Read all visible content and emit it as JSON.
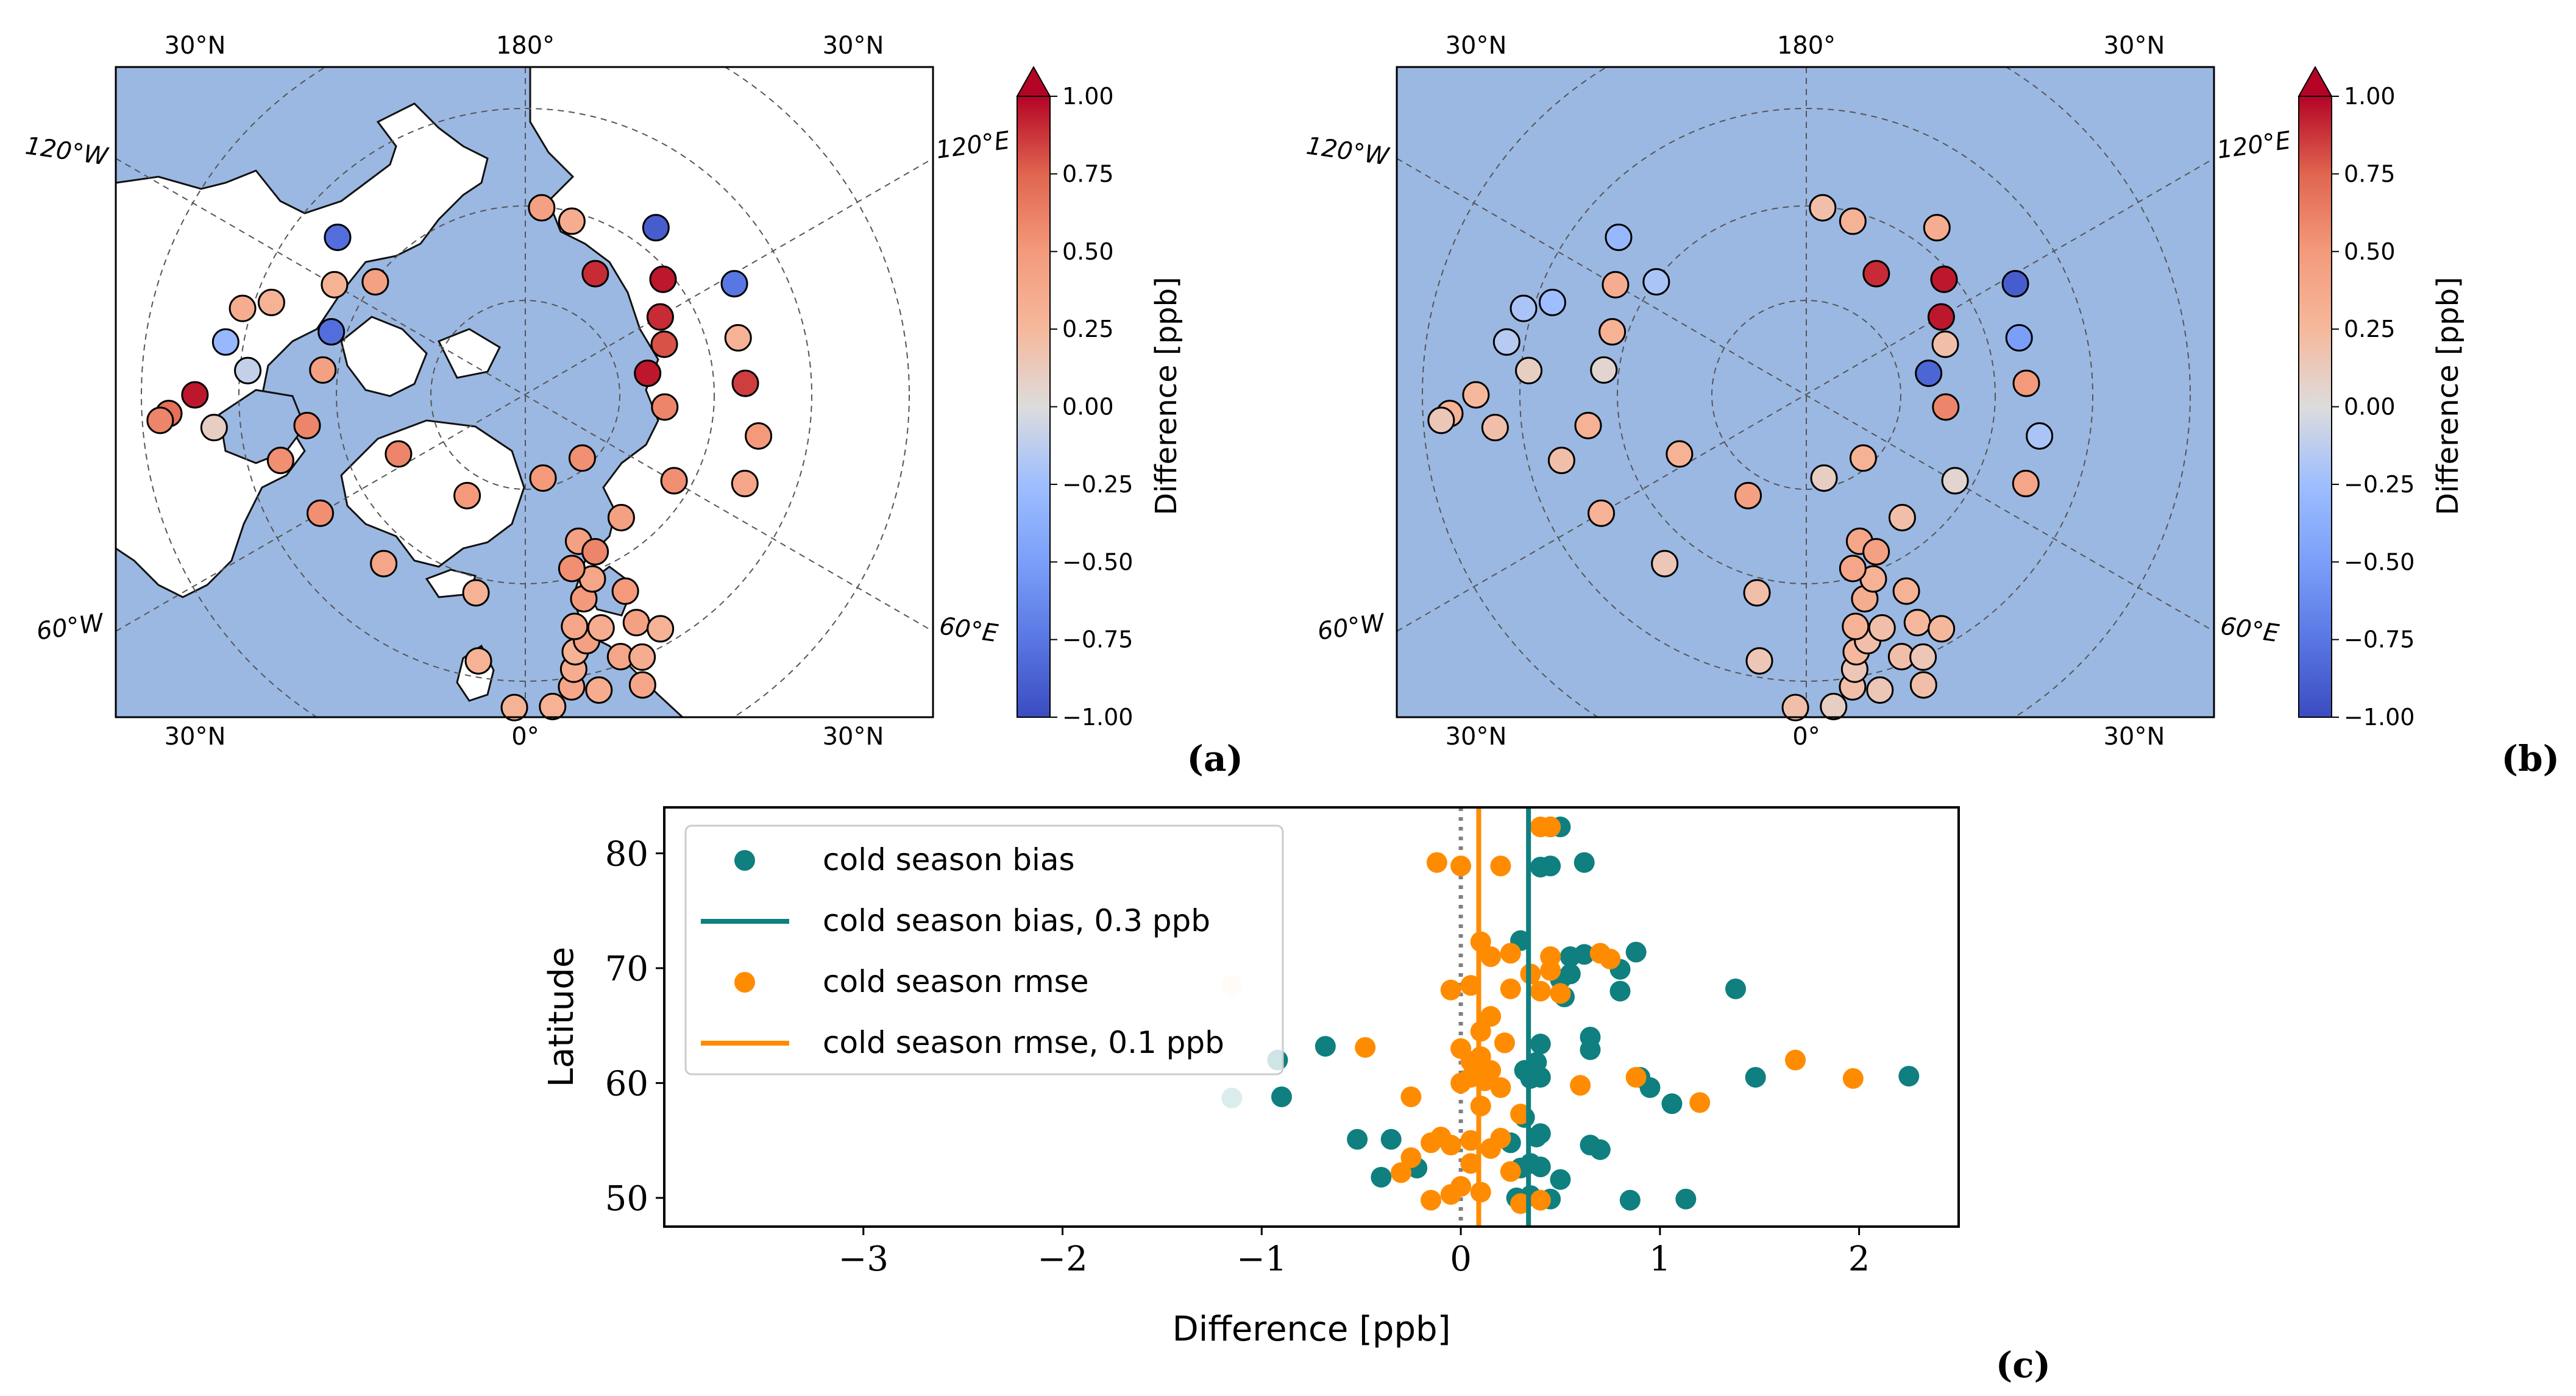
{
  "figure": {
    "panel_labels": [
      "(a)",
      "(b)",
      "(c)"
    ],
    "colors": {
      "ocean": "#9bb8e2",
      "land": "#ffffff",
      "coast": "#111111",
      "bias": "#0f7f7f",
      "rmse": "#ff8c00",
      "zero_line": "#808080"
    }
  },
  "maps": [
    {
      "panel": "(a)",
      "projection": "north-polar-stereographic",
      "lon_labels_top": [
        "30°N",
        "180°",
        "30°N"
      ],
      "lon_labels_bottom": [
        "30°N",
        "0°",
        "30°N"
      ],
      "side_labels": [
        "120°W",
        "120°E",
        "60°W",
        "60°E"
      ],
      "colorbar": {
        "label": "Difference [ppb]",
        "range": [
          -1.0,
          1.0
        ],
        "ticks": [
          "1.00",
          "0.75",
          "0.50",
          "0.25",
          "0.00",
          "−0.25",
          "−0.50",
          "−0.75",
          "−1.00"
        ],
        "cmap": "coolwarm",
        "extend": "max"
      },
      "stations": [
        {
          "lon": -127,
          "lat": 66,
          "v": 0.45
        },
        {
          "lon": -120,
          "lat": 62,
          "v": 0.3
        },
        {
          "lon": -110,
          "lat": 56,
          "v": 0.3
        },
        {
          "lon": -107,
          "lat": 53,
          "v": 0.35
        },
        {
          "lon": -100,
          "lat": 52,
          "v": -0.3
        },
        {
          "lon": -95,
          "lat": 55,
          "v": -0.1
        },
        {
          "lon": -108,
          "lat": 64,
          "v": -0.8
        },
        {
          "lon": -97,
          "lat": 64,
          "v": 0.45
        },
        {
          "lon": -82,
          "lat": 62,
          "v": 0.6
        },
        {
          "lon": -75,
          "lat": 58,
          "v": 0.55
        },
        {
          "lon": -60,
          "lat": 60,
          "v": 0.55
        },
        {
          "lon": -130,
          "lat": 59,
          "v": -0.8
        },
        {
          "lon": -84,
          "lat": 51,
          "v": 0.1
        },
        {
          "lon": -90,
          "lat": 49,
          "v": 0.95
        },
        {
          "lon": -87,
          "lat": 46,
          "v": 0.7
        },
        {
          "lon": -86,
          "lat": 45,
          "v": 0.6
        },
        {
          "lon": -65,
          "lat": 72,
          "v": 0.6
        },
        {
          "lon": -40,
          "lat": 62,
          "v": 0.4
        },
        {
          "lon": -14,
          "lat": 64,
          "v": 0.3
        },
        {
          "lon": -30,
          "lat": 75,
          "v": 0.5
        },
        {
          "lon": -10,
          "lat": 56,
          "v": 0.3
        },
        {
          "lon": -2,
          "lat": 51,
          "v": 0.3
        },
        {
          "lon": 12,
          "lat": 79,
          "v": 0.5
        },
        {
          "lon": 9,
          "lat": 53,
          "v": 0.4
        },
        {
          "lon": 10,
          "lat": 55,
          "v": 0.35
        },
        {
          "lon": 11,
          "lat": 57,
          "v": 0.3
        },
        {
          "lon": 14,
          "lat": 58,
          "v": 0.45
        },
        {
          "lon": 12,
          "lat": 60,
          "v": 0.4
        },
        {
          "lon": 18,
          "lat": 59,
          "v": 0.35
        },
        {
          "lon": 16,
          "lat": 63,
          "v": 0.5
        },
        {
          "lon": 20,
          "lat": 65,
          "v": 0.4
        },
        {
          "lon": 15,
          "lat": 67,
          "v": 0.55
        },
        {
          "lon": 20,
          "lat": 70,
          "v": 0.45
        },
        {
          "lon": 24,
          "lat": 68,
          "v": 0.6
        },
        {
          "lon": 27,
          "lat": 62,
          "v": 0.5
        },
        {
          "lon": 26,
          "lat": 58,
          "v": 0.45
        },
        {
          "lon": 20,
          "lat": 55,
          "v": 0.4
        },
        {
          "lon": 24,
          "lat": 54,
          "v": 0.35
        },
        {
          "lon": 5,
          "lat": 51,
          "v": 0.3
        },
        {
          "lon": 14,
          "lat": 52,
          "v": 0.35
        },
        {
          "lon": 22,
          "lat": 51,
          "v": 0.4
        },
        {
          "lon": 30,
          "lat": 56,
          "v": 0.3
        },
        {
          "lon": 42,
          "lat": 79,
          "v": 0.55
        },
        {
          "lon": 38,
          "lat": 70,
          "v": 0.45
        },
        {
          "lon": 60,
          "lat": 68,
          "v": 0.55
        },
        {
          "lon": 85,
          "lat": 72,
          "v": 0.6
        },
        {
          "lon": 100,
          "lat": 74,
          "v": 0.95
        },
        {
          "lon": 110,
          "lat": 71,
          "v": 0.8
        },
        {
          "lon": 120,
          "lat": 70,
          "v": 0.9
        },
        {
          "lon": 118,
          "lat": 60,
          "v": -0.75
        },
        {
          "lon": 105,
          "lat": 62,
          "v": 0.3
        },
        {
          "lon": 93,
          "lat": 62,
          "v": 0.85
        },
        {
          "lon": 80,
          "lat": 60,
          "v": 0.5
        },
        {
          "lon": 68,
          "lat": 60,
          "v": 0.4
        },
        {
          "lon": 130,
          "lat": 67,
          "v": 0.95
        },
        {
          "lon": 142,
          "lat": 63,
          "v": -0.9
        },
        {
          "lon": 150,
          "lat": 72,
          "v": 0.9
        },
        {
          "lon": 165,
          "lat": 67,
          "v": 0.35
        },
        {
          "lon": 175,
          "lat": 66,
          "v": 0.45
        }
      ]
    },
    {
      "panel": "(b)",
      "projection": "north-polar-stereographic",
      "lon_labels_top": [
        "30°N",
        "180°",
        "30°N"
      ],
      "lon_labels_bottom": [
        "30°N",
        "0°",
        "30°N"
      ],
      "side_labels": [
        "120°W",
        "120°E",
        "60°W",
        "60°E"
      ],
      "colorbar": {
        "label": "Difference [ppb]",
        "range": [
          -1.0,
          1.0
        ],
        "ticks": [
          "1.00",
          "0.75",
          "0.50",
          "0.25",
          "0.00",
          "−0.25",
          "−0.50",
          "−0.75",
          "−1.00"
        ],
        "cmap": "coolwarm",
        "extend": "max"
      },
      "stations": [
        {
          "lon": -127,
          "lat": 66,
          "v": -0.2
        },
        {
          "lon": -120,
          "lat": 62,
          "v": 0.35
        },
        {
          "lon": -110,
          "lat": 56,
          "v": -0.25
        },
        {
          "lon": -107,
          "lat": 53,
          "v": -0.2
        },
        {
          "lon": -100,
          "lat": 52,
          "v": -0.15
        },
        {
          "lon": -95,
          "lat": 55,
          "v": 0.1
        },
        {
          "lon": -108,
          "lat": 64,
          "v": 0.3
        },
        {
          "lon": -97,
          "lat": 64,
          "v": 0.05
        },
        {
          "lon": -82,
          "lat": 62,
          "v": 0.3
        },
        {
          "lon": -75,
          "lat": 58,
          "v": 0.2
        },
        {
          "lon": -60,
          "lat": 60,
          "v": 0.3
        },
        {
          "lon": -130,
          "lat": 59,
          "v": -0.3
        },
        {
          "lon": -84,
          "lat": 51,
          "v": 0.2
        },
        {
          "lon": -90,
          "lat": 49,
          "v": 0.25
        },
        {
          "lon": -87,
          "lat": 46,
          "v": 0.3
        },
        {
          "lon": -86,
          "lat": 45,
          "v": 0.15
        },
        {
          "lon": -65,
          "lat": 72,
          "v": 0.3
        },
        {
          "lon": -40,
          "lat": 62,
          "v": 0.15
        },
        {
          "lon": -14,
          "lat": 64,
          "v": 0.2
        },
        {
          "lon": -30,
          "lat": 75,
          "v": 0.45
        },
        {
          "lon": -10,
          "lat": 56,
          "v": 0.15
        },
        {
          "lon": -2,
          "lat": 51,
          "v": 0.2
        },
        {
          "lon": 12,
          "lat": 79,
          "v": 0.1
        },
        {
          "lon": 9,
          "lat": 53,
          "v": 0.2
        },
        {
          "lon": 10,
          "lat": 55,
          "v": 0.15
        },
        {
          "lon": 11,
          "lat": 57,
          "v": 0.25
        },
        {
          "lon": 14,
          "lat": 58,
          "v": 0.2
        },
        {
          "lon": 12,
          "lat": 60,
          "v": 0.3
        },
        {
          "lon": 18,
          "lat": 59,
          "v": 0.2
        },
        {
          "lon": 16,
          "lat": 63,
          "v": 0.35
        },
        {
          "lon": 20,
          "lat": 65,
          "v": 0.3
        },
        {
          "lon": 15,
          "lat": 67,
          "v": 0.4
        },
        {
          "lon": 20,
          "lat": 70,
          "v": 0.4
        },
        {
          "lon": 24,
          "lat": 68,
          "v": 0.45
        },
        {
          "lon": 27,
          "lat": 62,
          "v": 0.3
        },
        {
          "lon": 26,
          "lat": 58,
          "v": 0.25
        },
        {
          "lon": 20,
          "lat": 55,
          "v": 0.2
        },
        {
          "lon": 24,
          "lat": 54,
          "v": 0.15
        },
        {
          "lon": 5,
          "lat": 51,
          "v": 0.1
        },
        {
          "lon": 14,
          "lat": 52,
          "v": 0.15
        },
        {
          "lon": 22,
          "lat": 51,
          "v": 0.2
        },
        {
          "lon": 30,
          "lat": 56,
          "v": 0.25
        },
        {
          "lon": 42,
          "lat": 79,
          "v": 0.3
        },
        {
          "lon": 38,
          "lat": 70,
          "v": 0.2
        },
        {
          "lon": 60,
          "lat": 68,
          "v": 0.05
        },
        {
          "lon": 85,
          "lat": 72,
          "v": 0.6
        },
        {
          "lon": 100,
          "lat": 74,
          "v": -0.85
        },
        {
          "lon": 110,
          "lat": 71,
          "v": 0.2
        },
        {
          "lon": 120,
          "lat": 70,
          "v": 0.95
        },
        {
          "lon": 118,
          "lat": 60,
          "v": -0.9
        },
        {
          "lon": 105,
          "lat": 62,
          "v": -0.5
        },
        {
          "lon": 93,
          "lat": 62,
          "v": 0.5
        },
        {
          "lon": 80,
          "lat": 60,
          "v": -0.2
        },
        {
          "lon": 68,
          "lat": 60,
          "v": 0.4
        },
        {
          "lon": 130,
          "lat": 67,
          "v": 0.95
        },
        {
          "lon": 142,
          "lat": 63,
          "v": 0.35
        },
        {
          "lon": 150,
          "lat": 72,
          "v": 0.9
        },
        {
          "lon": 165,
          "lat": 67,
          "v": 0.3
        },
        {
          "lon": 175,
          "lat": 66,
          "v": 0.2
        }
      ]
    }
  ],
  "chart_data": {
    "type": "scatter",
    "panel": "(c)",
    "xlabel": "Difference [ppb]",
    "ylabel": "Latitude",
    "xlim": [
      -4.0,
      2.5
    ],
    "ylim": [
      47.5,
      84
    ],
    "xticks": [
      -3,
      -2,
      -1,
      0,
      1,
      2
    ],
    "xtick_labels": [
      "−3",
      "−2",
      "−1",
      "0",
      "1",
      "2"
    ],
    "yticks": [
      50,
      60,
      70,
      80
    ],
    "ytick_labels": [
      "50",
      "60",
      "70",
      "80"
    ],
    "legend_location": "upper-left",
    "zero_line": 0,
    "series": [
      {
        "name": "cold season bias",
        "kind": "points",
        "color": "#0f7f7f",
        "points": [
          [
            0.45,
            82.3
          ],
          [
            0.5,
            82.3
          ],
          [
            0.4,
            78.8
          ],
          [
            0.45,
            78.9
          ],
          [
            0.62,
            79.2
          ],
          [
            0.3,
            72.4
          ],
          [
            0.55,
            71.0
          ],
          [
            0.62,
            71.2
          ],
          [
            0.88,
            71.4
          ],
          [
            0.8,
            69.9
          ],
          [
            0.5,
            69.0
          ],
          [
            0.55,
            69.5
          ],
          [
            0.8,
            68.0
          ],
          [
            1.38,
            68.2
          ],
          [
            0.52,
            67.5
          ],
          [
            0.65,
            64.0
          ],
          [
            0.4,
            63.4
          ],
          [
            0.65,
            62.9
          ],
          [
            -0.68,
            63.2
          ],
          [
            -0.92,
            62.0
          ],
          [
            0.38,
            61.8
          ],
          [
            0.32,
            61.1
          ],
          [
            0.4,
            60.5
          ],
          [
            0.35,
            60.4
          ],
          [
            0.9,
            60.5
          ],
          [
            1.48,
            60.5
          ],
          [
            2.25,
            60.6
          ],
          [
            0.95,
            59.6
          ],
          [
            1.06,
            58.2
          ],
          [
            -1.15,
            58.7
          ],
          [
            -0.9,
            58.8
          ],
          [
            0.32,
            57.0
          ],
          [
            0.4,
            55.6
          ],
          [
            0.38,
            55.3
          ],
          [
            0.65,
            54.6
          ],
          [
            0.7,
            54.2
          ],
          [
            -0.52,
            55.1
          ],
          [
            -0.35,
            55.1
          ],
          [
            0.25,
            54.8
          ],
          [
            0.35,
            53.0
          ],
          [
            0.3,
            52.6
          ],
          [
            0.4,
            52.7
          ],
          [
            -0.22,
            52.6
          ],
          [
            -0.4,
            51.8
          ],
          [
            0.5,
            51.6
          ],
          [
            0.35,
            50.2
          ],
          [
            0.28,
            50.0
          ],
          [
            0.45,
            49.9
          ],
          [
            0.85,
            49.8
          ],
          [
            1.13,
            49.9
          ]
        ]
      },
      {
        "name": "cold season bias, 0.3 ppb",
        "kind": "vline",
        "color": "#0f7f7f",
        "x": 0.34
      },
      {
        "name": "cold season rmse",
        "kind": "points",
        "color": "#ff8c00",
        "points": [
          [
            0.4,
            82.3
          ],
          [
            0.45,
            82.3
          ],
          [
            -0.12,
            79.2
          ],
          [
            0.0,
            78.9
          ],
          [
            0.2,
            78.9
          ],
          [
            0.1,
            72.3
          ],
          [
            0.15,
            71.0
          ],
          [
            0.25,
            71.3
          ],
          [
            0.45,
            71.0
          ],
          [
            0.7,
            71.3
          ],
          [
            0.75,
            70.8
          ],
          [
            0.35,
            69.5
          ],
          [
            0.45,
            69.8
          ],
          [
            0.05,
            68.5
          ],
          [
            -0.05,
            68.1
          ],
          [
            0.25,
            68.2
          ],
          [
            0.4,
            68.0
          ],
          [
            0.5,
            67.8
          ],
          [
            -1.15,
            68.5
          ],
          [
            0.15,
            65.8
          ],
          [
            0.1,
            64.5
          ],
          [
            0.22,
            63.5
          ],
          [
            -0.48,
            63.1
          ],
          [
            0.0,
            63.0
          ],
          [
            0.1,
            62.3
          ],
          [
            0.05,
            61.9
          ],
          [
            0.15,
            61.1
          ],
          [
            0.05,
            60.5
          ],
          [
            0.12,
            60.2
          ],
          [
            0.2,
            59.6
          ],
          [
            0.0,
            60.0
          ],
          [
            0.6,
            59.8
          ],
          [
            0.88,
            60.5
          ],
          [
            1.68,
            62.0
          ],
          [
            1.97,
            60.4
          ],
          [
            1.2,
            58.3
          ],
          [
            -0.25,
            58.8
          ],
          [
            0.1,
            58.0
          ],
          [
            0.3,
            57.3
          ],
          [
            -0.1,
            55.3
          ],
          [
            0.05,
            55.0
          ],
          [
            0.2,
            55.2
          ],
          [
            -0.15,
            54.8
          ],
          [
            -0.05,
            54.6
          ],
          [
            0.15,
            54.3
          ],
          [
            -0.25,
            53.5
          ],
          [
            0.05,
            53.0
          ],
          [
            0.25,
            52.3
          ],
          [
            -0.3,
            52.2
          ],
          [
            0.1,
            50.5
          ],
          [
            -0.05,
            50.3
          ],
          [
            -0.15,
            49.8
          ],
          [
            0.3,
            49.5
          ],
          [
            0.4,
            49.8
          ],
          [
            0.0,
            51.0
          ]
        ]
      },
      {
        "name": "cold season rmse, 0.1 ppb",
        "kind": "vline",
        "color": "#ff8c00",
        "x": 0.09
      }
    ]
  }
}
